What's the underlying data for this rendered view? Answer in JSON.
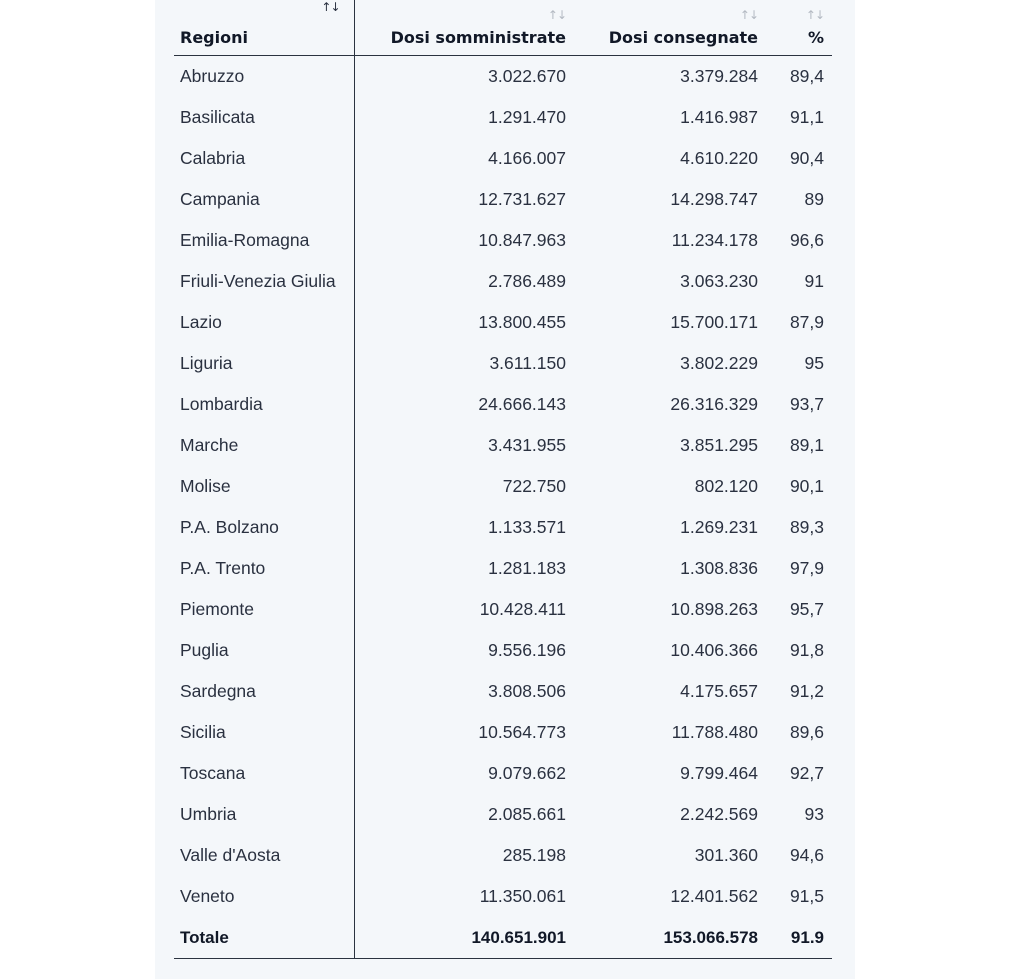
{
  "columns": {
    "region": "Regioni",
    "administered": "Dosi somministrate",
    "delivered": "Dosi consegnate",
    "percent": "%"
  },
  "sort_icon": "↑↓",
  "rows": [
    {
      "region": "Abruzzo",
      "administered": "3.022.670",
      "delivered": "3.379.284",
      "percent": "89,4"
    },
    {
      "region": "Basilicata",
      "administered": "1.291.470",
      "delivered": "1.416.987",
      "percent": "91,1"
    },
    {
      "region": "Calabria",
      "administered": "4.166.007",
      "delivered": "4.610.220",
      "percent": "90,4"
    },
    {
      "region": "Campania",
      "administered": "12.731.627",
      "delivered": "14.298.747",
      "percent": "89"
    },
    {
      "region": "Emilia-Romagna",
      "administered": "10.847.963",
      "delivered": "11.234.178",
      "percent": "96,6"
    },
    {
      "region": "Friuli-Venezia Giulia",
      "administered": "2.786.489",
      "delivered": "3.063.230",
      "percent": "91"
    },
    {
      "region": "Lazio",
      "administered": "13.800.455",
      "delivered": "15.700.171",
      "percent": "87,9"
    },
    {
      "region": "Liguria",
      "administered": "3.611.150",
      "delivered": "3.802.229",
      "percent": "95"
    },
    {
      "region": "Lombardia",
      "administered": "24.666.143",
      "delivered": "26.316.329",
      "percent": "93,7"
    },
    {
      "region": "Marche",
      "administered": "3.431.955",
      "delivered": "3.851.295",
      "percent": "89,1"
    },
    {
      "region": "Molise",
      "administered": "722.750",
      "delivered": "802.120",
      "percent": "90,1"
    },
    {
      "region": "P.A. Bolzano",
      "administered": "1.133.571",
      "delivered": "1.269.231",
      "percent": "89,3"
    },
    {
      "region": "P.A. Trento",
      "administered": "1.281.183",
      "delivered": "1.308.836",
      "percent": "97,9"
    },
    {
      "region": "Piemonte",
      "administered": "10.428.411",
      "delivered": "10.898.263",
      "percent": "95,7"
    },
    {
      "region": "Puglia",
      "administered": "9.556.196",
      "delivered": "10.406.366",
      "percent": "91,8"
    },
    {
      "region": "Sardegna",
      "administered": "3.808.506",
      "delivered": "4.175.657",
      "percent": "91,2"
    },
    {
      "region": "Sicilia",
      "administered": "10.564.773",
      "delivered": "11.788.480",
      "percent": "89,6"
    },
    {
      "region": "Toscana",
      "administered": "9.079.662",
      "delivered": "9.799.464",
      "percent": "92,7"
    },
    {
      "region": "Umbria",
      "administered": "2.085.661",
      "delivered": "2.242.569",
      "percent": "93"
    },
    {
      "region": "Valle d'Aosta",
      "administered": "285.198",
      "delivered": "301.360",
      "percent": "94,6"
    },
    {
      "region": "Veneto",
      "administered": "11.350.061",
      "delivered": "12.401.562",
      "percent": "91,5"
    }
  ],
  "total": {
    "region": "Totale",
    "administered": "140.651.901",
    "delivered": "153.066.578",
    "percent": "91.9"
  }
}
